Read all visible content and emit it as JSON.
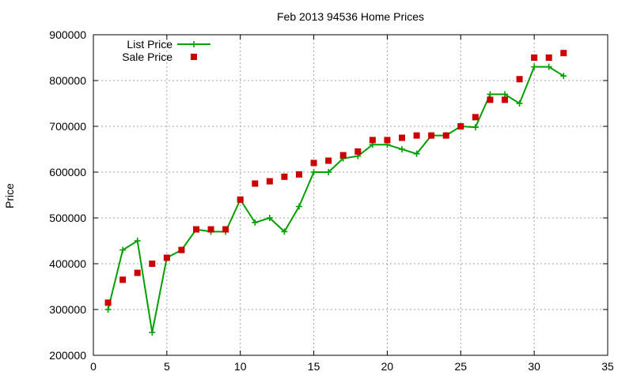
{
  "chart_data": {
    "type": "line",
    "title": "Feb 2013 94536 Home Prices",
    "xlabel": "",
    "ylabel": "Price",
    "xlim": [
      0,
      35
    ],
    "ylim": [
      200000,
      900000
    ],
    "x_ticks": [
      "0",
      "5",
      "10",
      "15",
      "20",
      "25",
      "30",
      "35"
    ],
    "y_ticks": [
      "200000",
      "300000",
      "400000",
      "500000",
      "600000",
      "700000",
      "800000",
      "900000"
    ],
    "grid": true,
    "legend_position": "top-left",
    "series": [
      {
        "name": "List Price",
        "style": "line-with-plus-markers",
        "color": "#00a000",
        "x": [
          1,
          2,
          3,
          4,
          5,
          6,
          7,
          8,
          9,
          10,
          11,
          12,
          13,
          14,
          15,
          16,
          17,
          18,
          19,
          20,
          21,
          22,
          23,
          24,
          25,
          26,
          27,
          28,
          29,
          30,
          31,
          32
        ],
        "values": [
          300000,
          430000,
          450000,
          250000,
          413000,
          430000,
          475000,
          470000,
          470000,
          540000,
          490000,
          500000,
          470000,
          525000,
          600000,
          600000,
          630000,
          635000,
          660000,
          660000,
          650000,
          640000,
          680000,
          680000,
          700000,
          698000,
          770000,
          770000,
          750000,
          830000,
          830000,
          810000
        ]
      },
      {
        "name": "Sale Price",
        "style": "square-markers",
        "color": "#cc0000",
        "x": [
          1,
          2,
          3,
          4,
          5,
          6,
          7,
          8,
          9,
          10,
          11,
          12,
          13,
          14,
          15,
          16,
          17,
          18,
          19,
          20,
          21,
          22,
          23,
          24,
          25,
          26,
          27,
          28,
          29,
          30,
          31,
          32
        ],
        "values": [
          315000,
          365000,
          380000,
          400000,
          413000,
          430000,
          475000,
          475000,
          475000,
          540000,
          575000,
          580000,
          590000,
          595000,
          620000,
          625000,
          637000,
          645000,
          670000,
          670000,
          675000,
          680000,
          680000,
          680000,
          700000,
          720000,
          758000,
          758000,
          803000,
          850000,
          850000,
          860000
        ]
      }
    ]
  }
}
